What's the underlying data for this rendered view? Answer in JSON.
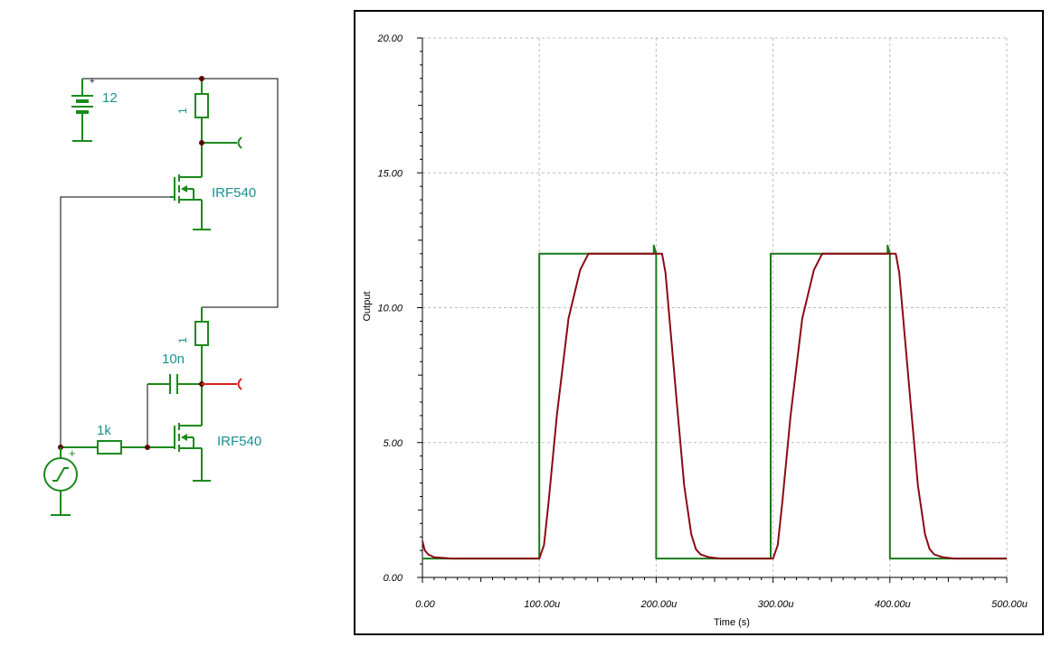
{
  "schematic": {
    "battery_label": "12",
    "r_top_label": "1",
    "r_mid_label": "1",
    "mosfet_top_label": "IRF540",
    "mosfet_bottom_label": "IRF540",
    "capacitor_label": "10n",
    "r_gate_label": "1k",
    "plus_sign": "+",
    "colors": {
      "component": "#1a8a1a",
      "wire": "#000000",
      "label": "#1b8f8f",
      "probe_top": "#1a8a1a",
      "probe_bottom": "#e02020",
      "node": "#5a0000"
    }
  },
  "chart_data": {
    "type": "line",
    "xlabel": "Time (s)",
    "ylabel": "Output",
    "xlim": [
      0,
      500
    ],
    "ylim": [
      0,
      20
    ],
    "x_unit": "u",
    "x_ticks": [
      "0.00",
      "100.00u",
      "200.00u",
      "300.00u",
      "400.00u",
      "500.00u"
    ],
    "y_ticks": [
      "0.00",
      "5.00",
      "10.00",
      "15.00",
      "20.00"
    ],
    "grid": true,
    "series": [
      {
        "color": "#1a7a1a",
        "x": [
          0,
          100,
          100,
          198,
          198,
          200,
          200,
          298,
          298,
          398,
          398,
          400,
          400,
          500
        ],
        "y": [
          0.7,
          0.7,
          12,
          12,
          12.3,
          12,
          0.7,
          0.7,
          12,
          12,
          12.3,
          12,
          0.7,
          0.7
        ]
      },
      {
        "color": "#8b0a14",
        "x": [
          0,
          2,
          5,
          10,
          25,
          100,
          104,
          108,
          115,
          125,
          135,
          142,
          205,
          208,
          212,
          218,
          224,
          230,
          234,
          238,
          245,
          255,
          300,
          304,
          308,
          315,
          325,
          335,
          342,
          405,
          408,
          412,
          418,
          424,
          430,
          434,
          438,
          445,
          455,
          500
        ],
        "y": [
          1.35,
          1.0,
          0.85,
          0.75,
          0.7,
          0.7,
          1.2,
          2.8,
          6.0,
          9.6,
          11.4,
          12.0,
          12.0,
          11.3,
          9.3,
          6.3,
          3.4,
          1.6,
          1.05,
          0.85,
          0.75,
          0.7,
          0.7,
          1.2,
          2.8,
          6.0,
          9.6,
          11.4,
          12.0,
          12.0,
          11.3,
          9.3,
          6.3,
          3.4,
          1.6,
          1.05,
          0.85,
          0.75,
          0.7,
          0.7
        ]
      }
    ]
  }
}
